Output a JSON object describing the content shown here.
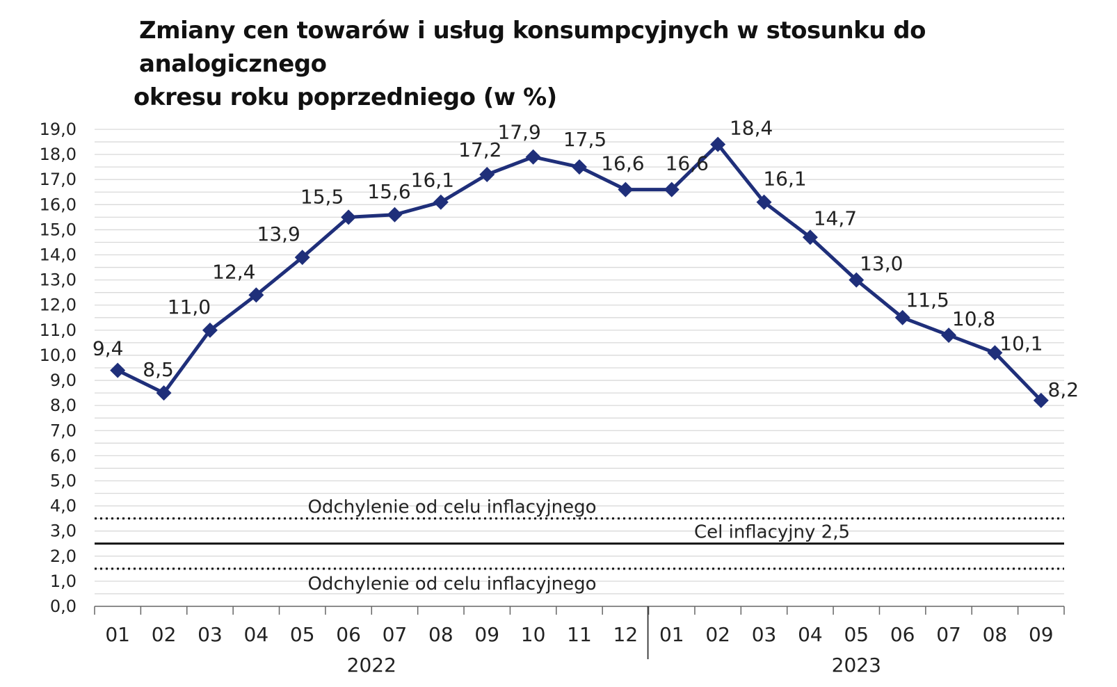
{
  "chart_data": {
    "type": "line",
    "title_line1": "Zmiany cen towarów i usług konsumpcyjnych w stosunku do analogicznego",
    "title_line2": "okresu roku poprzedniego (w %)",
    "categories": [
      "01",
      "02",
      "03",
      "04",
      "05",
      "06",
      "07",
      "08",
      "09",
      "10",
      "11",
      "12",
      "01",
      "02",
      "03",
      "04",
      "05",
      "06",
      "07",
      "08",
      "09"
    ],
    "years": [
      {
        "label": "2022",
        "from_index": 0,
        "to_index": 11
      },
      {
        "label": "2023",
        "from_index": 12,
        "to_index": 20
      }
    ],
    "series": [
      {
        "values": [
          9.4,
          8.5,
          11.0,
          12.4,
          13.9,
          15.5,
          15.6,
          16.1,
          17.2,
          17.9,
          17.5,
          16.6,
          16.6,
          18.4,
          16.1,
          14.7,
          13.0,
          11.5,
          10.8,
          10.1,
          8.2
        ],
        "labels": [
          "9,4",
          "8,5",
          "11,0",
          "12,4",
          "13,9",
          "15,5",
          "15,6",
          "16,1",
          "17,2",
          "17,9",
          "17,5",
          "16,6",
          "16,6",
          "18,4",
          "16,1",
          "14,7",
          "13,0",
          "11,5",
          "10,8",
          "10,1",
          "8,2"
        ],
        "color": "#1f2f7a",
        "marker": "diamond"
      }
    ],
    "reference_lines": [
      {
        "value": 3.5,
        "style": "dotted",
        "label": "Odchylenie od celu inflacyjnego"
      },
      {
        "value": 2.5,
        "style": "solid",
        "label": "Cel inflacyjny 2,5"
      },
      {
        "value": 1.5,
        "style": "dotted",
        "label": "Odchylenie od celu inflacyjnego"
      }
    ],
    "ylim": [
      0,
      19
    ],
    "yticks": [
      "0,0",
      "1,0",
      "2,0",
      "3,0",
      "4,0",
      "5,0",
      "6,0",
      "7,0",
      "8,0",
      "9,0",
      "10,0",
      "11,0",
      "12,0",
      "13,0",
      "14,0",
      "15,0",
      "16,0",
      "17,0",
      "18,0",
      "19,0"
    ],
    "grid": true,
    "legend": "none"
  }
}
